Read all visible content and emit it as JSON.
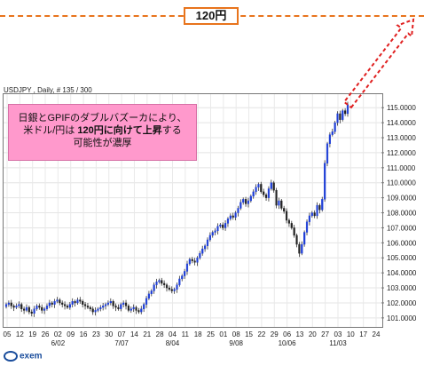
{
  "target": {
    "label": "120円",
    "value": 120,
    "color": "#e8741c"
  },
  "annotation": {
    "line1": "日銀とGPIFのダブルバズーカにより、",
    "line2_prefix": "米ドル/円は ",
    "line2_bold": "120円に向けて上昇",
    "line2_suffix": "する",
    "line3": "可能性が濃厚"
  },
  "logo": "exem",
  "chart_data": {
    "type": "candlestick",
    "title": "USDJPY , Daily, # 135 / 300",
    "y_tick_labels": [
      "101.0000",
      "102.0000",
      "103.0000",
      "104.0000",
      "105.0000",
      "106.0000",
      "107.0000",
      "108.0000",
      "109.0000",
      "110.0000",
      "111.0000",
      "112.0000",
      "113.0000",
      "114.0000",
      "115.0000"
    ],
    "ylim": [
      100.4,
      115.9
    ],
    "x_day_labels": [
      "05",
      "12",
      "19",
      "26",
      "02",
      "09",
      "16",
      "23",
      "30",
      "07",
      "14",
      "21",
      "28",
      "04",
      "11",
      "18",
      "25",
      "01",
      "08",
      "15",
      "22",
      "29",
      "06",
      "13",
      "20",
      "27",
      "03",
      "10",
      "17",
      "24"
    ],
    "x_month_labels": [
      {
        "label": "6/02",
        "at": "02"
      },
      {
        "label": "7/07",
        "at": "07"
      },
      {
        "label": "8/04",
        "at": "04"
      },
      {
        "label": "9/08",
        "at": "08"
      },
      {
        "label": "10/06",
        "at": "06"
      },
      {
        "label": "11/03",
        "at": "03"
      }
    ],
    "closes": [
      101.9,
      102.0,
      101.8,
      101.7,
      101.8,
      101.9,
      101.6,
      101.5,
      101.7,
      101.4,
      101.3,
      101.6,
      101.8,
      101.7,
      101.5,
      101.6,
      101.8,
      102.0,
      101.9,
      102.1,
      102.2,
      102.0,
      101.9,
      101.8,
      101.7,
      101.9,
      102.1,
      102.0,
      102.2,
      102.1,
      101.9,
      101.8,
      101.7,
      101.6,
      101.4,
      101.5,
      101.6,
      101.7,
      101.8,
      101.9,
      102.0,
      102.1,
      101.8,
      101.7,
      101.6,
      101.9,
      102.0,
      101.8,
      101.5,
      101.6,
      101.7,
      101.5,
      101.4,
      101.6,
      101.9,
      102.3,
      102.6,
      102.8,
      103.2,
      103.4,
      103.5,
      103.3,
      103.2,
      103.0,
      102.9,
      102.8,
      102.9,
      103.2,
      103.6,
      103.8,
      104.1,
      104.6,
      104.9,
      104.8,
      104.7,
      105.0,
      105.3,
      105.6,
      105.8,
      106.2,
      106.5,
      106.7,
      106.8,
      107.1,
      107.2,
      107.0,
      107.3,
      107.6,
      107.8,
      107.7,
      108.0,
      108.3,
      108.7,
      108.9,
      108.6,
      108.8,
      109.1,
      109.4,
      109.7,
      109.9,
      109.4,
      109.2,
      109.0,
      109.6,
      110.0,
      109.5,
      108.5,
      108.8,
      108.3,
      108.1,
      107.5,
      107.3,
      107.0,
      106.5,
      105.9,
      105.3,
      105.9,
      106.7,
      107.4,
      107.8,
      108.0,
      107.8,
      108.5,
      108.2,
      108.9,
      111.3,
      112.6,
      113.2,
      113.4,
      114.0,
      114.6,
      114.2,
      114.8,
      114.6,
      115.2
    ]
  }
}
